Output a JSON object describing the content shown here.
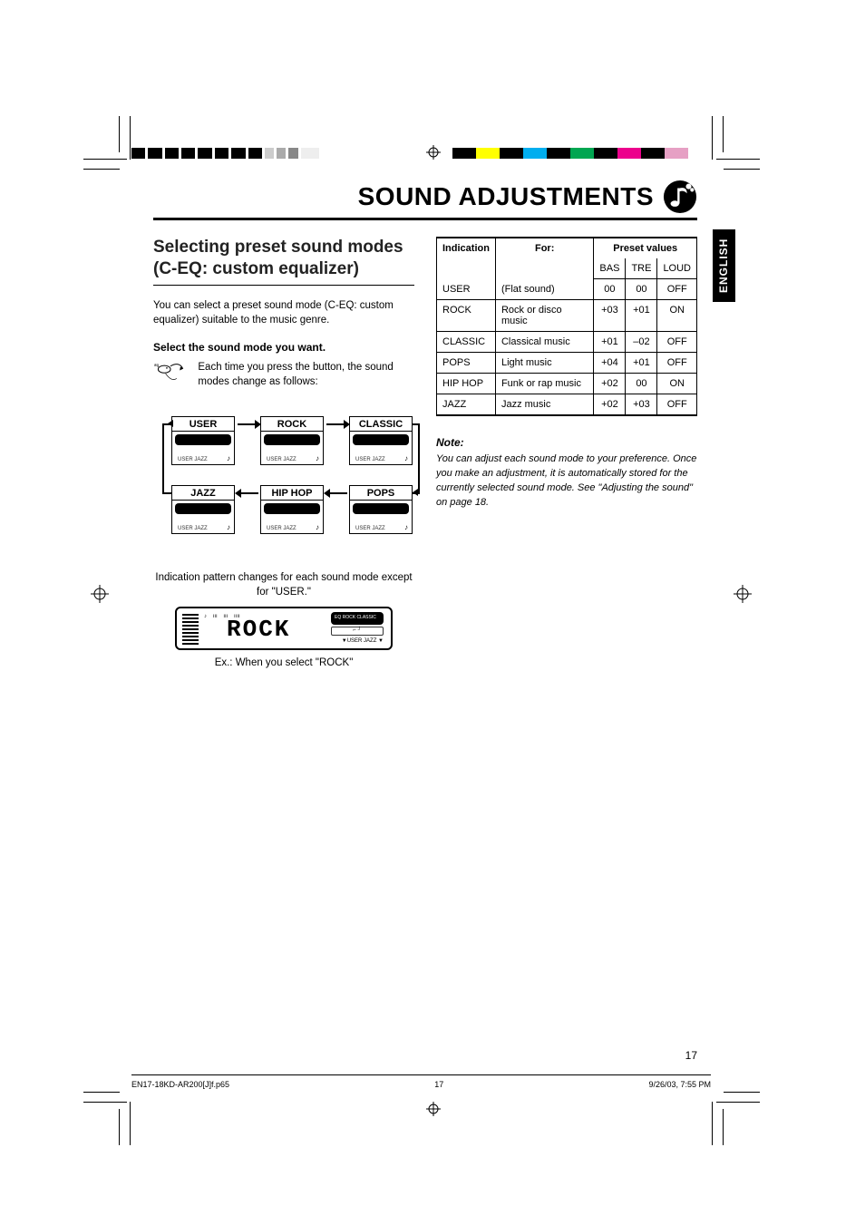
{
  "colors": {
    "text": "#000000",
    "background": "#ffffff",
    "lang_tab_bg": "#000000",
    "lang_tab_fg": "#ffffff"
  },
  "print_marks": {
    "colors": [
      "#000000",
      "#ffff00",
      "#000000",
      "#00aeef",
      "#000000",
      "#00a651",
      "#000000",
      "#ec008c",
      "#000000",
      "#e6a0c4"
    ]
  },
  "title": "SOUND ADJUSTMENTS",
  "lang_tab": "ENGLISH",
  "page_number": "17",
  "left": {
    "subtitle": "Selecting preset sound modes (C-EQ: custom equalizer)",
    "intro": "You can select a preset sound mode (C-EQ: custom equalizer) suitable to the music genre.",
    "step": "Select the sound mode you want.",
    "eq_caption": "Each time you press the button, the sound modes change as follows:",
    "flow": {
      "boxes": [
        "USER",
        "ROCK",
        "CLASSIC",
        "JAZZ",
        "HIP HOP",
        "POPS"
      ]
    },
    "pattern_text": "Indication pattern changes for each sound mode except for \"USER.\"",
    "lcd_text": "ROCK",
    "example_text": "Ex.: When you select \"ROCK\""
  },
  "right": {
    "table": {
      "headers": {
        "indication": "Indication",
        "for": "For:",
        "preset": "Preset values",
        "bas": "BAS",
        "tre": "TRE",
        "loud": "LOUD"
      },
      "rows": [
        {
          "ind": "USER",
          "for": "(Flat sound)",
          "bas": "00",
          "tre": "00",
          "loud": "OFF"
        },
        {
          "ind": "ROCK",
          "for": "Rock or disco music",
          "bas": "+03",
          "tre": "+01",
          "loud": "ON"
        },
        {
          "ind": "CLASSIC",
          "for": "Classical music",
          "bas": "+01",
          "tre": "–02",
          "loud": "OFF"
        },
        {
          "ind": "POPS",
          "for": "Light music",
          "bas": "+04",
          "tre": "+01",
          "loud": "OFF"
        },
        {
          "ind": "HIP HOP",
          "for": "Funk or rap music",
          "bas": "+02",
          "tre": "00",
          "loud": "ON"
        },
        {
          "ind": "JAZZ",
          "for": "Jazz music",
          "bas": "+02",
          "tre": "+03",
          "loud": "OFF"
        }
      ]
    },
    "note_head": "Note:",
    "note_body": "You can adjust each sound mode to your preference. Once you make an adjustment, it is automatically stored for the currently selected sound mode. See \"Adjusting the sound\" on page 18."
  },
  "footer": {
    "file": "EN17-18KD-AR200[J]f.p65",
    "page": "17",
    "datetime": "9/26/03, 7:55 PM"
  }
}
